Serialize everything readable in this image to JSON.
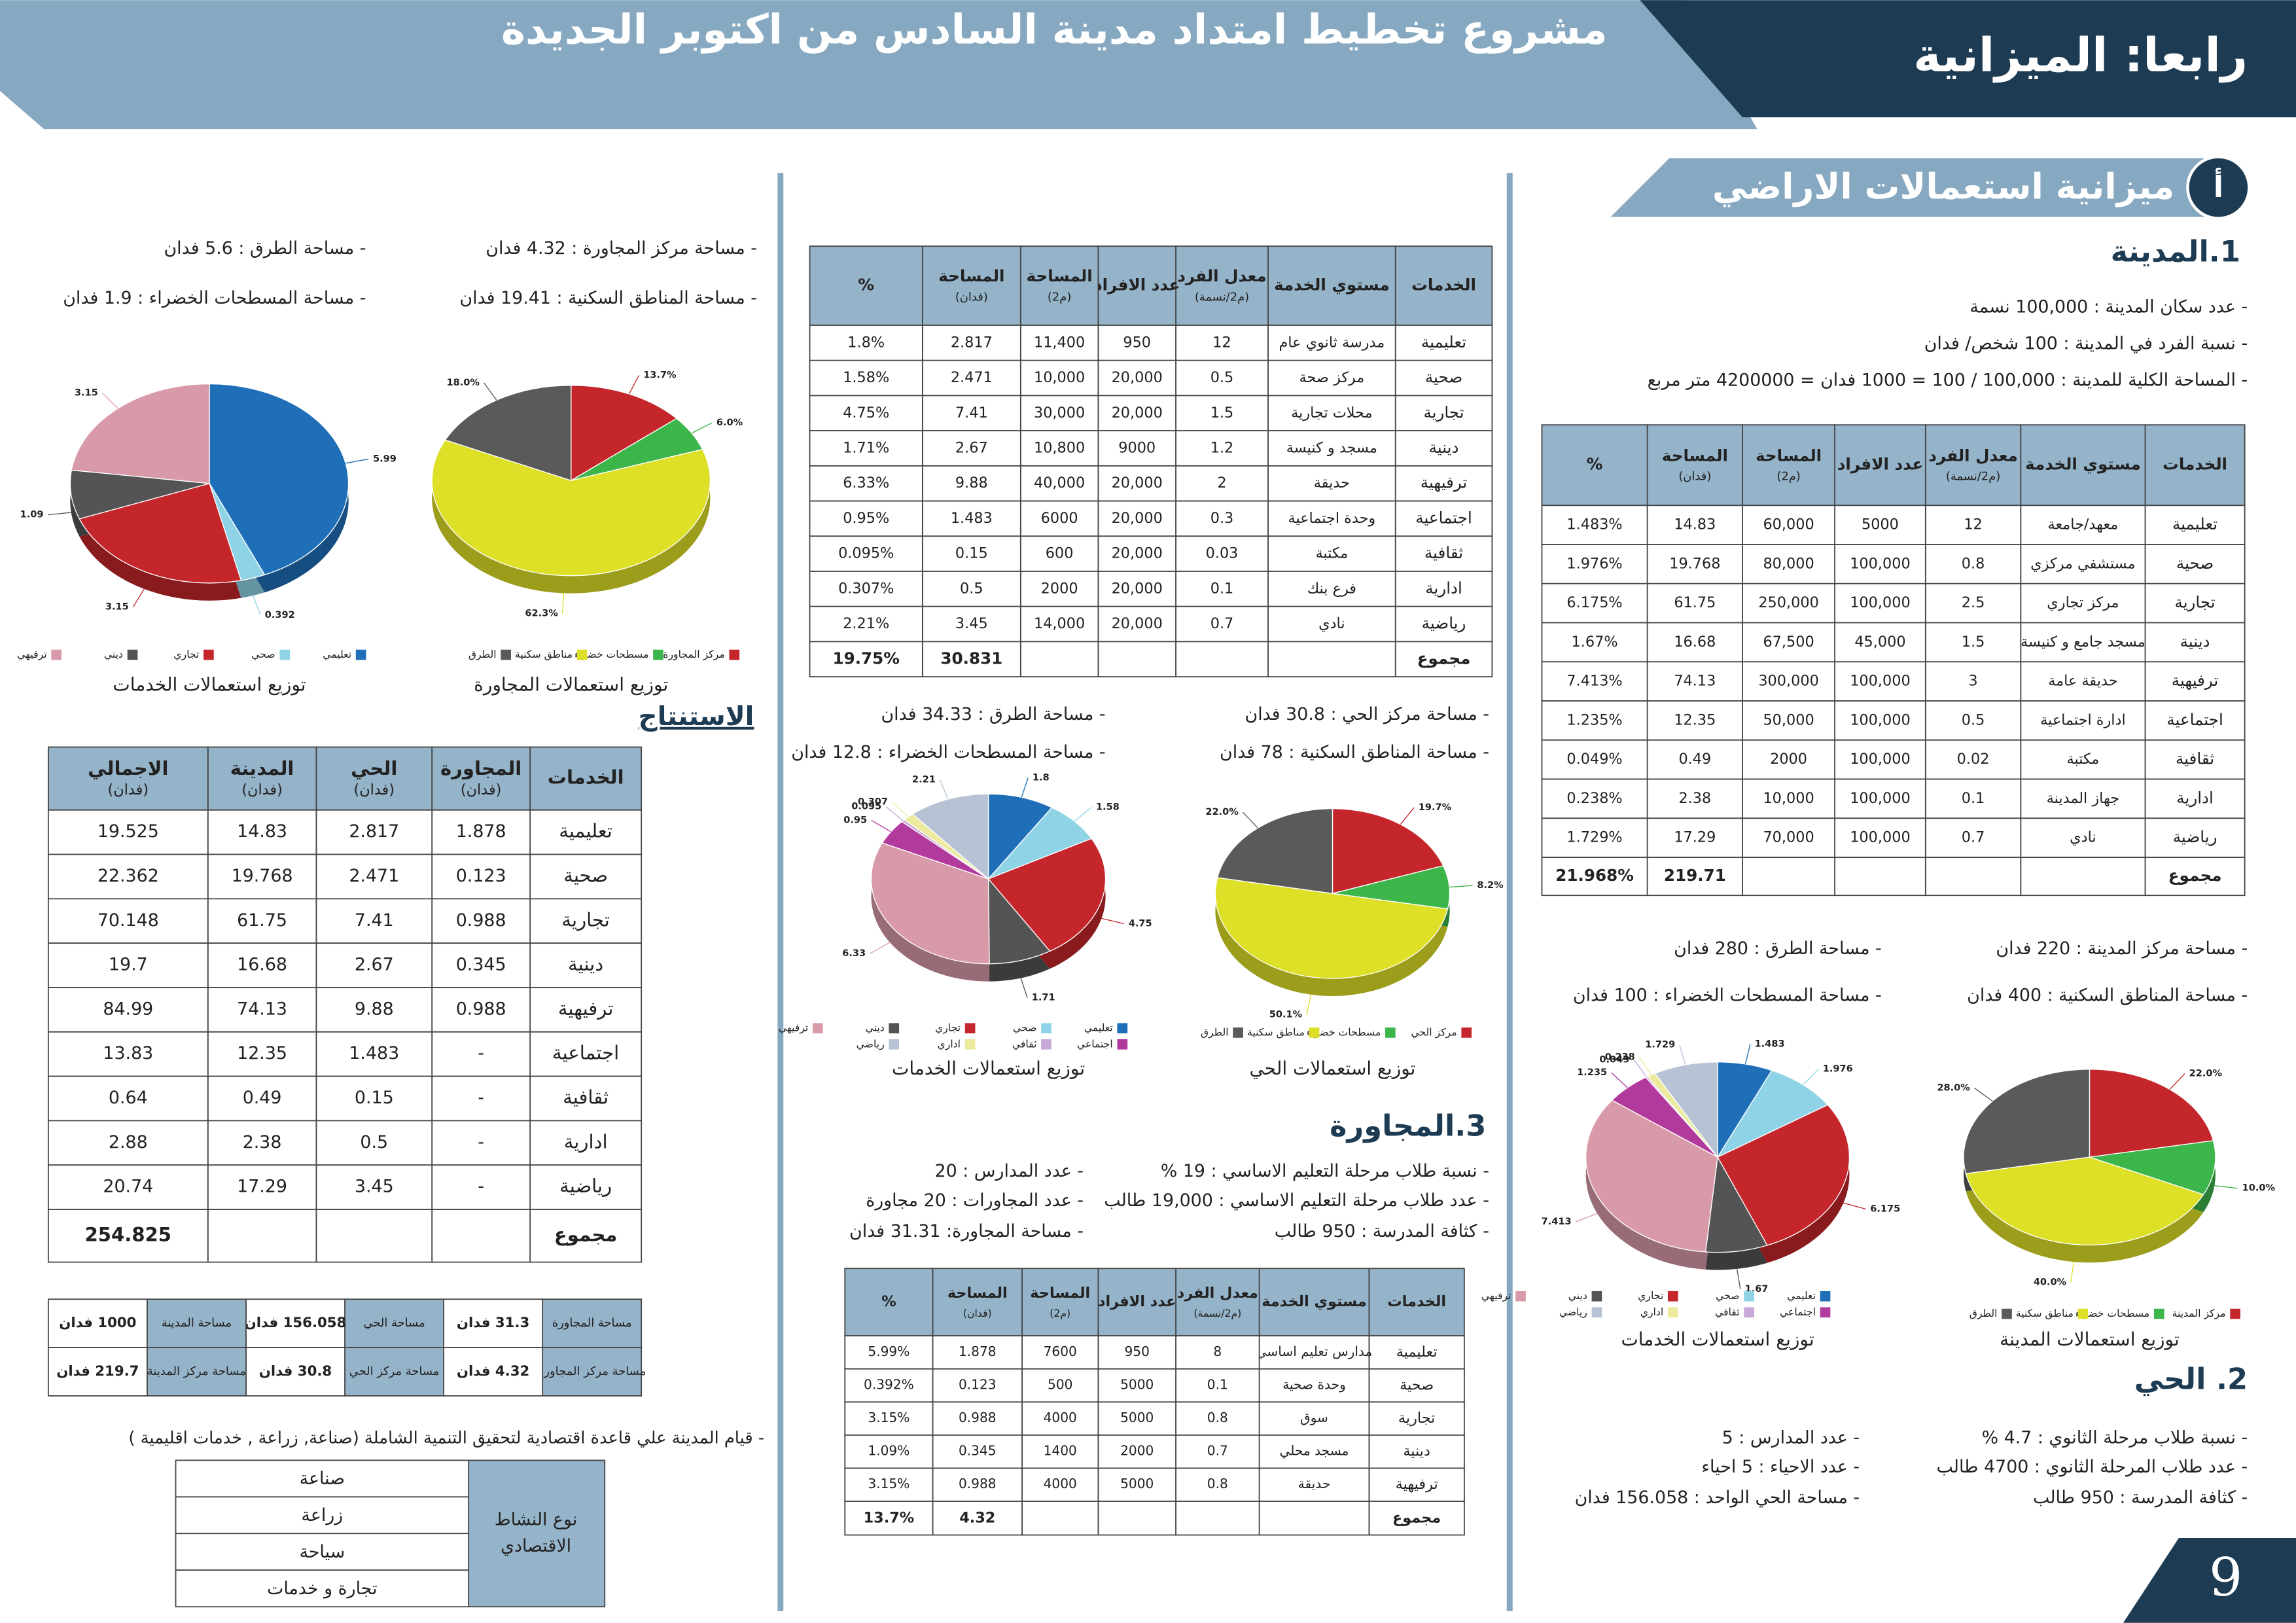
{
  "header": {
    "section": "رابعا: الميزانية",
    "title": "مشروع تخطيط امتداد مدينة السادس من اكتوبر الجديدة"
  },
  "page_number": 9,
  "subsection": {
    "letter": "أ",
    "title": "ميزانية استعمالات الاراضي"
  },
  "city": {
    "heading": "1.المدينة",
    "facts": [
      "- عدد سكان المدينة : 100,000 نسمة",
      "- نسبة الفرد في المدينة : 100 شخص/ فدان",
      "- المساحة الكلية للمدينة : 100,000 / 100 = 1000 فدان = 4200000 متر مربع"
    ],
    "table": {
      "headers": [
        [
          "الخدمات"
        ],
        [
          "مستوي الخدمة"
        ],
        [
          "معدل الفرد",
          "(م2/نسمة)"
        ],
        [
          "عدد الافراد"
        ],
        [
          "المساحة",
          "(م2)"
        ],
        [
          "المساحة",
          "(فدان)"
        ],
        [
          "%"
        ]
      ],
      "rows": [
        [
          "تعليمية",
          "معهد/جامعة",
          "12",
          "5000",
          "60,000",
          "14.83",
          "1.483%"
        ],
        [
          "صحية",
          "مستشفي مركزي",
          "0.8",
          "100,000",
          "80,000",
          "19.768",
          "1.976%"
        ],
        [
          "تجارية",
          "مركز تجاري",
          "2.5",
          "100,000",
          "250,000",
          "61.75",
          "6.175%"
        ],
        [
          "دينية",
          "مسجد جامع و كنيسة",
          "1.5",
          "45,000",
          "67,500",
          "16.68",
          "1.67%"
        ],
        [
          "ترفيهية",
          "حديقة عامة",
          "3",
          "100,000",
          "300,000",
          "74.13",
          "7.413%"
        ],
        [
          "اجتماعية",
          "ادارة اجتماعية",
          "0.5",
          "100,000",
          "50,000",
          "12.35",
          "1.235%"
        ],
        [
          "ثقافية",
          "مكتبة",
          "0.02",
          "100,000",
          "2000",
          "0.49",
          "0.049%"
        ],
        [
          "ادارية",
          "جهاز المدينة",
          "0.1",
          "100,000",
          "10,000",
          "2.38",
          "0.238%"
        ],
        [
          "رياضية",
          "نادي",
          "0.7",
          "100,000",
          "70,000",
          "17.29",
          "1.729%"
        ]
      ],
      "total": {
        "label": "مجموع",
        "area": "219.71",
        "percent": "21.968%"
      }
    },
    "areas": [
      "- مساحة مركز المدينة : 220 فدان",
      "- مساحة الطرق : 280 فدان",
      "- مساحة المناطق السكنية : 400 فدان",
      "- مساحة المسطحات الخضراء : 100 فدان"
    ]
  },
  "district": {
    "heading": "2. الحي",
    "facts": [
      "- نسبة طلاب مرحلة الثانوي : 4.7 %",
      "- عدد المدارس : 5",
      "- عدد طلاب المرحلة الثانوي : 4700 طالب",
      "- عدد الاحياء : 5 احياء",
      "- كثافة المدرسة : 950 طالب",
      "- مساحة الحي الواحد : 156.058 فدان"
    ],
    "table": {
      "headers": [
        [
          "الخدمات"
        ],
        [
          "مستوي الخدمة"
        ],
        [
          "معدل الفرد",
          "(م2/نسمة)"
        ],
        [
          "عدد الافراد"
        ],
        [
          "المساحة",
          "(م2)"
        ],
        [
          "المساحة",
          "(فدان)"
        ],
        [
          "%"
        ]
      ],
      "rows": [
        [
          "تعليمية",
          "مدرسة ثانوي عام",
          "12",
          "950",
          "11,400",
          "2.817",
          "1.8%"
        ],
        [
          "صحية",
          "مركز صحة",
          "0.5",
          "20,000",
          "10,000",
          "2.471",
          "1.58%"
        ],
        [
          "تجارية",
          "محلات تجارية",
          "1.5",
          "20,000",
          "30,000",
          "7.41",
          "4.75%"
        ],
        [
          "دينية",
          "مسجد و كنيسة",
          "1.2",
          "9000",
          "10,800",
          "2.67",
          "1.71%"
        ],
        [
          "ترفيهية",
          "حديقة",
          "2",
          "20,000",
          "40,000",
          "9.88",
          "6.33%"
        ],
        [
          "اجتماعية",
          "وحدة اجتماعية",
          "0.3",
          "20,000",
          "6000",
          "1.483",
          "0.95%"
        ],
        [
          "ثقافية",
          "مكتبة",
          "0.03",
          "20,000",
          "600",
          "0.15",
          "0.095%"
        ],
        [
          "ادارية",
          "فرع بنك",
          "0.1",
          "20,000",
          "2000",
          "0.5",
          "0.307%"
        ],
        [
          "رياضية",
          "نادي",
          "0.7",
          "20,000",
          "14,000",
          "3.45",
          "2.21%"
        ]
      ],
      "total": {
        "label": "مجموع",
        "area": "30.831",
        "percent": "19.75%"
      }
    },
    "areas": [
      "- مساحة مركز الحي : 30.8 فدان",
      "- مساحة الطرق : 34.33 فدان",
      "- مساحة المناطق السكنية : 78 فدان",
      "- مساحة المسطحات الخضراء : 12.8 فدان"
    ]
  },
  "neighborhood": {
    "heading": "3.المجاورة",
    "facts": [
      "- نسبة طلاب مرحلة التعليم الاساسي : 19 %",
      "- عدد المدارس : 20",
      "- عدد طلاب مرحلة التعليم الاساسي : 19,000 طالب",
      "- عدد المجاورات : 20 مجاورة",
      "- كثافة المدرسة : 950 طالب",
      "- مساحة المجاورة: 31.31 فدان"
    ],
    "table": {
      "headers": [
        [
          "الخدمات"
        ],
        [
          "مستوي الخدمة"
        ],
        [
          "معدل الفرد",
          "(م2/نسمة)"
        ],
        [
          "عدد الافراد"
        ],
        [
          "المساحة",
          "(م2)"
        ],
        [
          "المساحة",
          "(فدان)"
        ],
        [
          "%"
        ]
      ],
      "rows": [
        [
          "تعليمية",
          "مدارس تعليم اساسي",
          "8",
          "950",
          "7600",
          "1.878",
          "5.99%"
        ],
        [
          "صحية",
          "وحدة صحية",
          "0.1",
          "5000",
          "500",
          "0.123",
          "0.392%"
        ],
        [
          "تجارية",
          "سوق",
          "0.8",
          "5000",
          "4000",
          "0.988",
          "3.15%"
        ],
        [
          "دينية",
          "مسجد محلي",
          "0.7",
          "2000",
          "1400",
          "0.345",
          "1.09%"
        ],
        [
          "ترفيهية",
          "حديقة",
          "0.8",
          "5000",
          "4000",
          "0.988",
          "3.15%"
        ]
      ],
      "total": {
        "label": "مجموع",
        "area": "4.32",
        "percent": "13.7%"
      }
    },
    "areas": [
      "- مساحة مركز المجاورة : 4.32 فدان",
      "- مساحة الطرق : 5.6 فدان",
      "- مساحة المناطق السكنية : 19.41 فدان",
      "- مساحة المسطحات الخضراء : 1.9 فدان"
    ]
  },
  "conclusion": {
    "heading": "الاستنتاج",
    "table": {
      "headers": [
        [
          "الخدمات"
        ],
        [
          "المجاورة",
          "(فدان)"
        ],
        [
          "الحي",
          "(فدان)"
        ],
        [
          "المدينة",
          "(فدان)"
        ],
        [
          "الاجمالي",
          "(فدان)"
        ]
      ],
      "rows": [
        [
          "تعليمية",
          "1.878",
          "2.817",
          "14.83",
          "19.525"
        ],
        [
          "صحية",
          "0.123",
          "2.471",
          "19.768",
          "22.362"
        ],
        [
          "تجارية",
          "0.988",
          "7.41",
          "61.75",
          "70.148"
        ],
        [
          "دينية",
          "0.345",
          "2.67",
          "16.68",
          "19.7"
        ],
        [
          "ترفيهية",
          "0.988",
          "9.88",
          "74.13",
          "84.99"
        ],
        [
          "اجتماعية",
          "-",
          "1.483",
          "12.35",
          "13.83"
        ],
        [
          "ثقافية",
          "-",
          "0.15",
          "0.49",
          "0.64"
        ],
        [
          "ادارية",
          "-",
          "0.5",
          "2.38",
          "2.88"
        ],
        [
          "رياضية",
          "-",
          "3.45",
          "17.29",
          "20.74"
        ]
      ],
      "total": {
        "label": "مجموع",
        "total": "254.825"
      }
    },
    "summary": [
      [
        "مساحة المجاورة",
        "31.3 فدان",
        "مساحة الحي",
        "156.058 فدان",
        "مساحة المدينة",
        "1000 فدان"
      ],
      [
        "مساحة مركز المجاورة",
        "4.32 فدان",
        "مساحة مركز الحي",
        "30.8 فدان",
        "مساحة مركز المدينة",
        "219.7 فدان"
      ]
    ],
    "economy_note": "- قيام المدينة علي قاعدة اقتصادية لتحقيق التنمية الشاملة (صناعة, زراعة , خدمات اقليمية )",
    "activity": {
      "label": [
        "نوع النشاط",
        "الاقتصادي"
      ],
      "items": [
        "صناعة",
        "زراعة",
        "سياحة",
        "تجارة و خدمات"
      ]
    }
  },
  "chart_data": [
    {
      "type": "pie",
      "title": "توزيع استعمالات الخدمات",
      "categories": [
        "تعليمي",
        "صحي",
        "تجاري",
        "ديني",
        "ترفيهي",
        "اجتماعي",
        "ثقافي",
        "اداري",
        "رياضي"
      ],
      "values": [
        1.483,
        1.976,
        6.175,
        1.67,
        7.413,
        1.235,
        0.049,
        0.238,
        1.729
      ],
      "colors": [
        "#1f6fb8",
        "#8fd4e6",
        "#c4262b",
        "#545454",
        "#d89aa8",
        "#b23a9c",
        "#c7a8d8",
        "#ecea9c",
        "#b7c3d4"
      ]
    },
    {
      "type": "pie",
      "title": "توزيع استعمالات المدينة",
      "categories": [
        "مركز المدينة",
        "مسطحات خضراء",
        "مناطق سكنية",
        "الطرق"
      ],
      "values": [
        22,
        10,
        40,
        28
      ],
      "value_labels": [
        "22.0%",
        "10.0%",
        "40.0%",
        "28.0%"
      ],
      "colors": [
        "#c4262b",
        "#3cb54a",
        "#dde026",
        "#5a5a5a"
      ]
    },
    {
      "type": "pie",
      "title": "توزيع استعمالات الخدمات",
      "categories": [
        "تعليمي",
        "صحي",
        "تجاري",
        "ديني",
        "ترفيهي",
        "اجتماعي",
        "ثقافي",
        "اداري",
        "رياضي"
      ],
      "values": [
        1.8,
        1.58,
        4.75,
        1.71,
        6.33,
        0.95,
        0.095,
        0.307,
        2.21
      ],
      "colors": [
        "#1f6fb8",
        "#8fd4e6",
        "#c4262b",
        "#545454",
        "#d89aa8",
        "#b23a9c",
        "#c7a8d8",
        "#ecea9c",
        "#b7c3d4"
      ]
    },
    {
      "type": "pie",
      "title": "توزيع استعمالات الحي",
      "categories": [
        "مركز الحي",
        "مسطحات خضراء",
        "مناطق سكنية",
        "الطرق"
      ],
      "values": [
        19.7,
        8.2,
        50.1,
        22
      ],
      "value_labels": [
        "19.7%",
        "8.2%",
        "50.1%",
        "22.0%"
      ],
      "colors": [
        "#c4262b",
        "#3cb54a",
        "#dde026",
        "#5a5a5a"
      ]
    },
    {
      "type": "pie",
      "title": "توزيع استعمالات الخدمات",
      "categories": [
        "تعليمي",
        "صحي",
        "تجاري",
        "ديني",
        "ترفيهي"
      ],
      "values": [
        5.99,
        0.392,
        3.15,
        1.09,
        3.15
      ],
      "colors": [
        "#1f6fb8",
        "#8fd4e6",
        "#c4262b",
        "#545454",
        "#d89aa8"
      ]
    },
    {
      "type": "pie",
      "title": "توزيع استعمالات المجاورة",
      "categories": [
        "مركز المجاورة",
        "مسطحات خضراء",
        "مناطق سكنية",
        "الطرق"
      ],
      "values": [
        13.7,
        6,
        62.3,
        18
      ],
      "value_labels": [
        "13.7%",
        "6.0%",
        "62.3%",
        "18.0%"
      ],
      "colors": [
        "#c4262b",
        "#3cb54a",
        "#dde026",
        "#5a5a5a"
      ]
    }
  ]
}
